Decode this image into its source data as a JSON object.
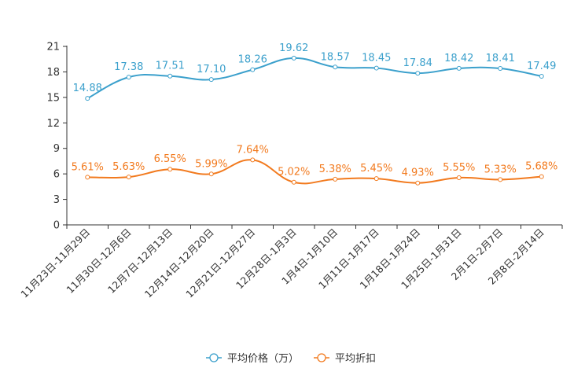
{
  "chart_data": {
    "type": "line",
    "title": "",
    "xlabel": "",
    "ylabel": "",
    "ylim": [
      0,
      21
    ],
    "yticks": [
      0,
      3,
      6,
      9,
      12,
      15,
      18,
      21
    ],
    "grid": false,
    "legend_position": "bottom-center",
    "categories": [
      "11月23日-11月29日",
      "11月30日-12月6日",
      "12月7日-12月13日",
      "12月14日-12月20日",
      "12月21日-12月27日",
      "12月28日-1月3日",
      "1月4日-1月10日",
      "1月11日-1月17日",
      "1月18日-1月24日",
      "1月25日-1月31日",
      "2月1日-2月7日",
      "2月8日-2月14日"
    ],
    "series": [
      {
        "name": "平均价格（万）",
        "color": "#3ba0cc",
        "values": [
          14.88,
          17.38,
          17.51,
          17.1,
          18.26,
          19.62,
          18.57,
          18.45,
          17.84,
          18.42,
          18.41,
          17.49
        ],
        "labels": [
          "14.88",
          "17.38",
          "17.51",
          "17.10",
          "18.26",
          "19.62",
          "18.57",
          "18.45",
          "17.84",
          "18.42",
          "18.41",
          "17.49"
        ]
      },
      {
        "name": "平均折扣",
        "color": "#f27a1e",
        "values": [
          5.61,
          5.63,
          6.55,
          5.99,
          7.64,
          5.02,
          5.38,
          5.45,
          4.93,
          5.55,
          5.33,
          5.68
        ],
        "labels": [
          "5.61%",
          "5.63%",
          "6.55%",
          "5.99%",
          "7.64%",
          "5.02%",
          "5.38%",
          "5.45%",
          "4.93%",
          "5.55%",
          "5.33%",
          "5.68%"
        ]
      }
    ]
  }
}
